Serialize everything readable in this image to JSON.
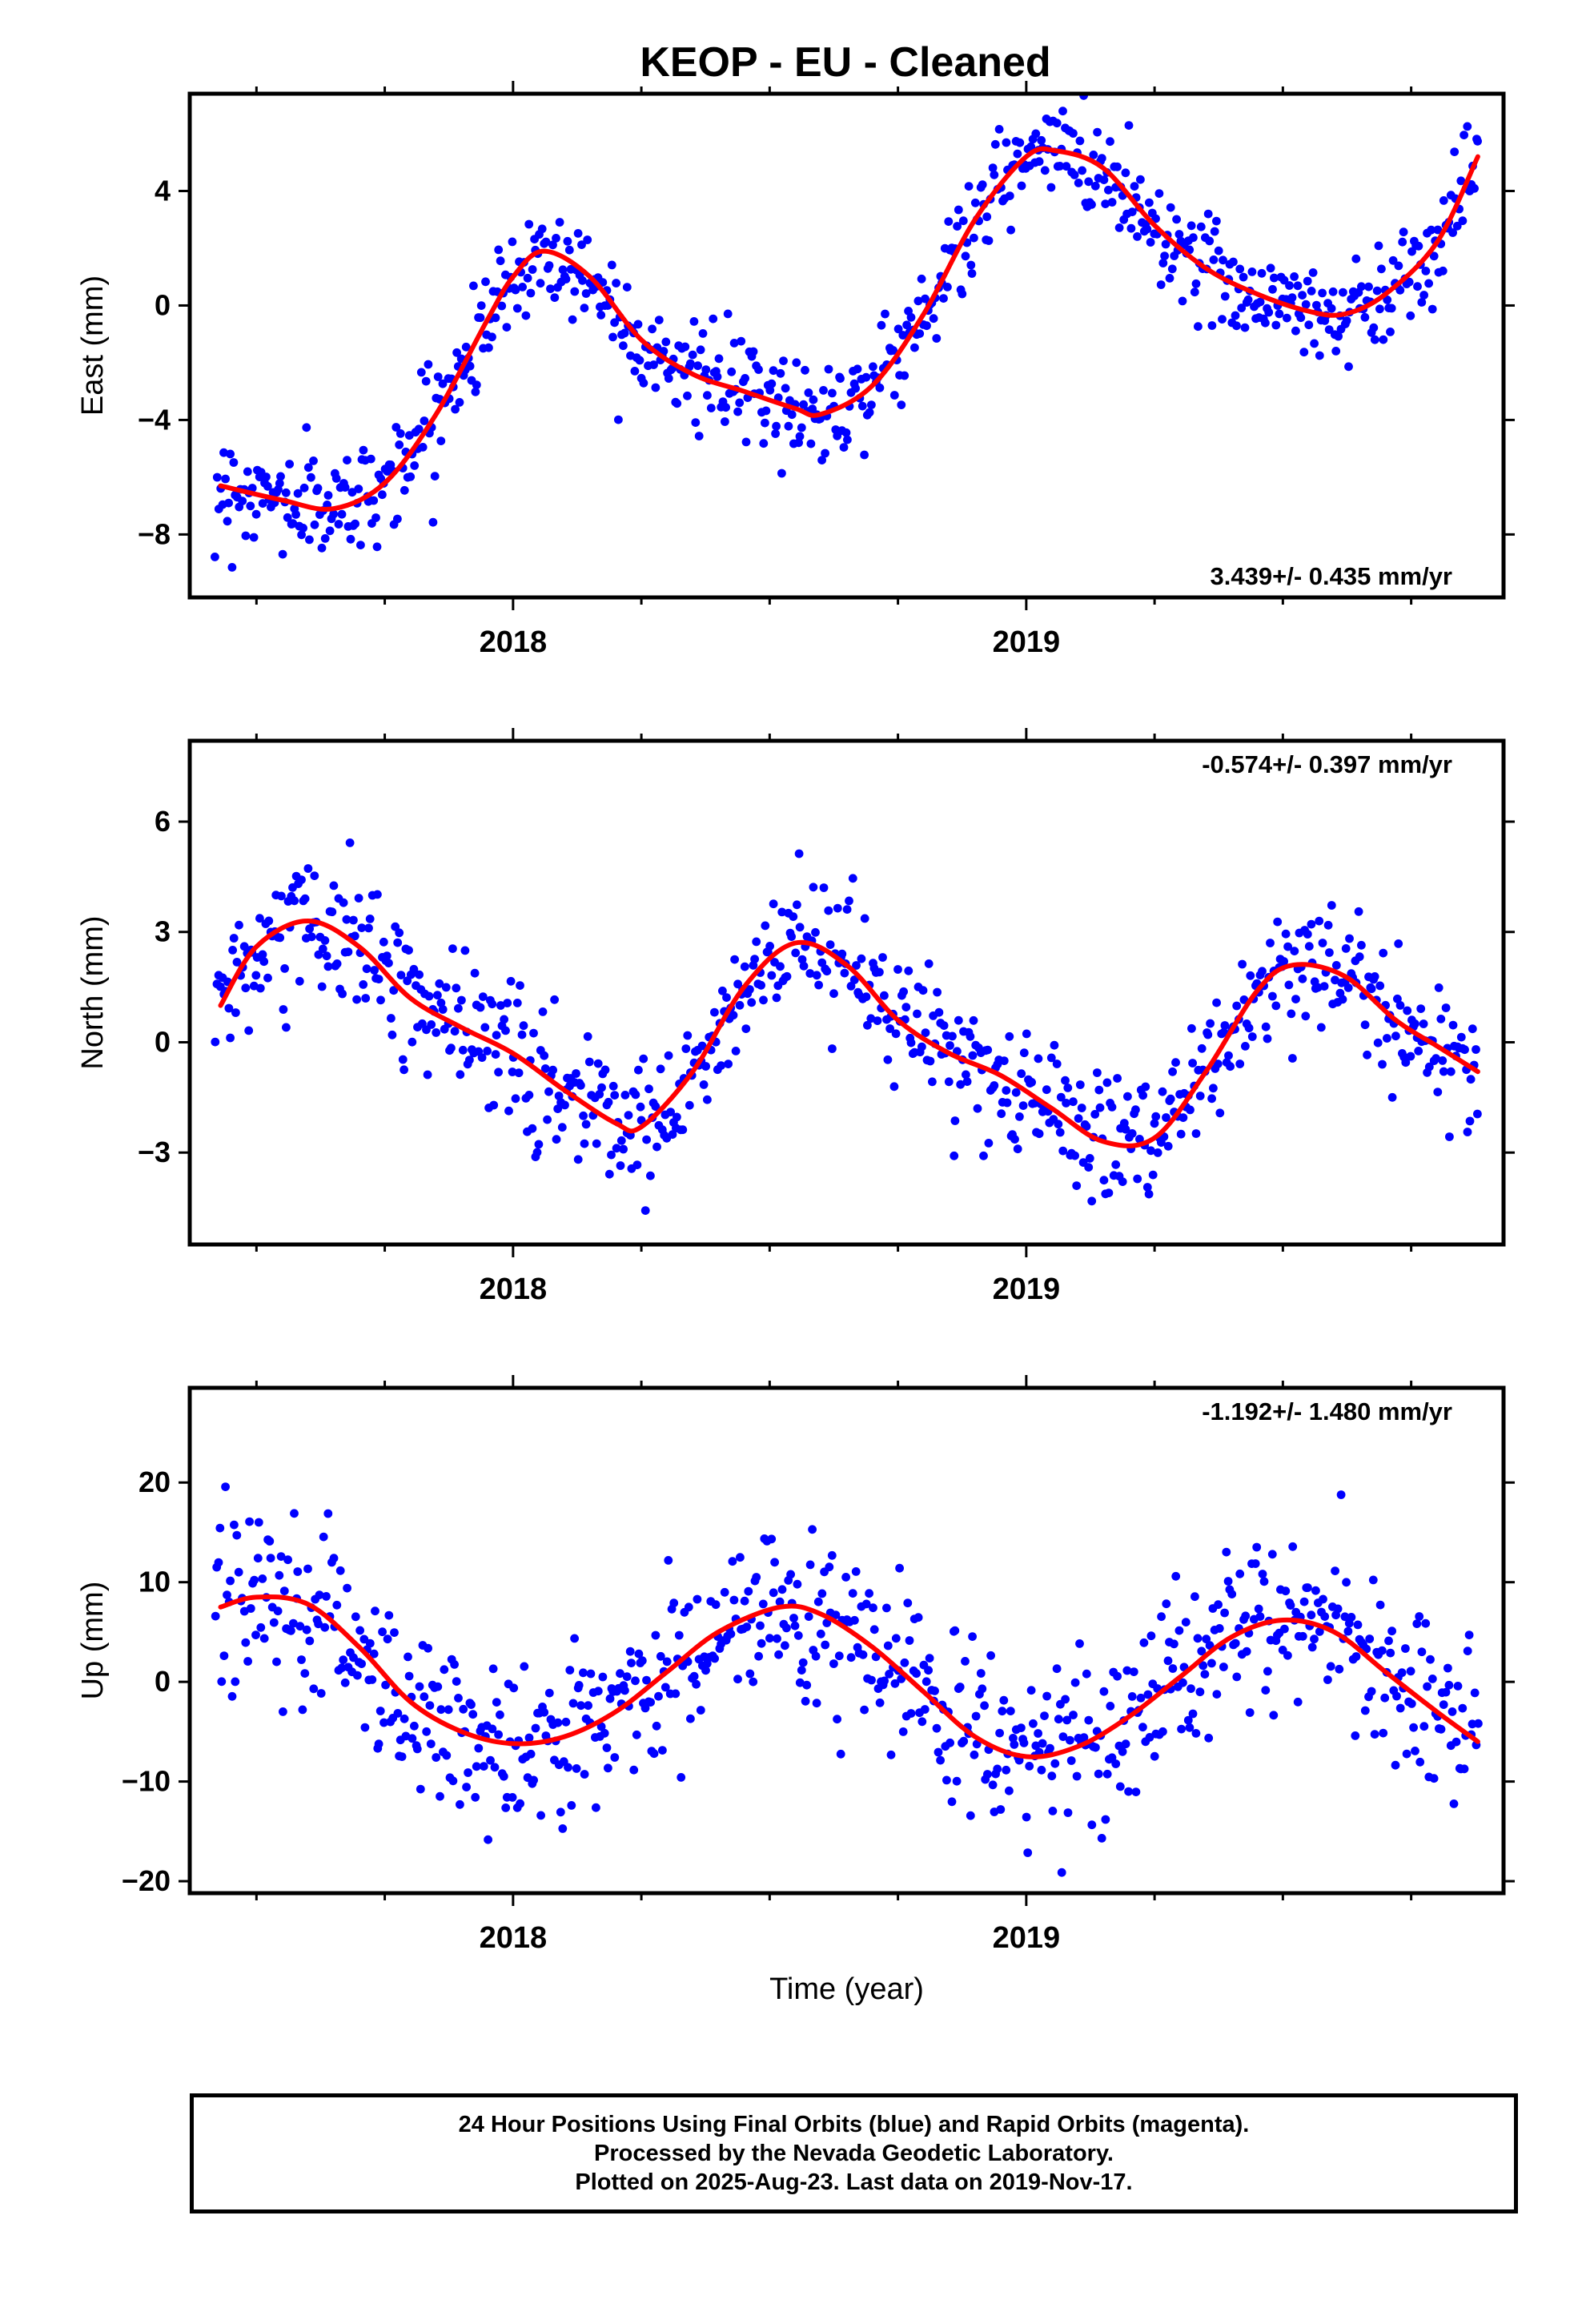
{
  "title": "KEOP  - EU - Cleaned",
  "footer": {
    "line1": "24 Hour Positions Using Final Orbits (blue) and Rapid Orbits (magenta).",
    "line2": "Processed by the Nevada Geodetic Laboratory.",
    "line3": "Plotted on 2025-Aug-23. Last data on 2019-Nov-17."
  },
  "colors": {
    "points": "#0000ff",
    "fit": "#ff0000",
    "frame": "#000000"
  },
  "chart_data": [
    {
      "type": "scatter",
      "component": "East",
      "ylabel": "East (mm)",
      "xlabel": "",
      "xlim": [
        2017.37,
        2019.93
      ],
      "ylim": [
        -10.2,
        7.4
      ],
      "yticks": [
        -8,
        -4,
        0,
        4
      ],
      "ytick_labels": [
        "−8",
        "−4",
        "0",
        "4"
      ],
      "xticks": [
        2018,
        2019
      ],
      "xtick_labels": [
        "2018",
        "2019"
      ],
      "rate_label": "3.439+/- 0.435 mm/yr",
      "rate_position": "bottom-right",
      "fit": {
        "x": [
          2017.43,
          2017.55,
          2017.65,
          2017.75,
          2017.85,
          2017.95,
          2018.0,
          2018.06,
          2018.15,
          2018.25,
          2018.35,
          2018.45,
          2018.55,
          2018.6,
          2018.7,
          2018.8,
          2018.9,
          2019.0,
          2019.06,
          2019.15,
          2019.25,
          2019.35,
          2019.45,
          2019.55,
          2019.62,
          2019.7,
          2019.8,
          2019.88
        ],
        "y": [
          -6.3,
          -6.8,
          -7.1,
          -6.2,
          -3.8,
          -0.5,
          1.0,
          1.9,
          1.0,
          -1.2,
          -2.4,
          -3.0,
          -3.6,
          -3.8,
          -2.8,
          -0.3,
          3.0,
          5.2,
          5.4,
          4.8,
          2.8,
          1.3,
          0.4,
          -0.2,
          -0.3,
          0.4,
          2.2,
          5.2
        ]
      },
      "points": {
        "x_range": [
          2017.42,
          2019.88
        ],
        "count": 750,
        "scatter_sd": 0.9
      }
    },
    {
      "type": "scatter",
      "component": "North",
      "ylabel": "North (mm)",
      "xlabel": "",
      "xlim": [
        2017.37,
        2019.93
      ],
      "ylim": [
        -5.5,
        8.2
      ],
      "yticks": [
        -3,
        0,
        3,
        6
      ],
      "ytick_labels": [
        "−3",
        "0",
        "3",
        "6"
      ],
      "xticks": [
        2018,
        2019
      ],
      "xtick_labels": [
        "2018",
        "2019"
      ],
      "rate_label": "-0.574+/- 0.397 mm/yr",
      "rate_position": "top-right",
      "fit": {
        "x": [
          2017.43,
          2017.5,
          2017.6,
          2017.7,
          2017.8,
          2017.9,
          2018.0,
          2018.1,
          2018.2,
          2018.25,
          2018.35,
          2018.45,
          2018.55,
          2018.65,
          2018.75,
          2018.85,
          2018.95,
          2019.05,
          2019.15,
          2019.25,
          2019.35,
          2019.45,
          2019.52,
          2019.62,
          2019.72,
          2019.8,
          2019.88
        ],
        "y": [
          1.0,
          2.6,
          3.3,
          2.6,
          1.2,
          0.4,
          -0.3,
          -1.3,
          -2.2,
          -2.3,
          -0.8,
          1.5,
          2.7,
          2.1,
          0.6,
          -0.3,
          -0.9,
          -1.8,
          -2.7,
          -2.6,
          -0.8,
          1.4,
          2.1,
          1.8,
          0.6,
          -0.1,
          -0.8
        ]
      },
      "points": {
        "x_range": [
          2017.42,
          2019.88
        ],
        "count": 750,
        "scatter_sd": 0.9
      }
    },
    {
      "type": "scatter",
      "component": "Up",
      "ylabel": "Up (mm)",
      "xlabel": "Time (year)",
      "xlim": [
        2017.37,
        2019.93
      ],
      "ylim": [
        -21.2,
        29.5
      ],
      "yticks": [
        -20,
        -10,
        0,
        10,
        20
      ],
      "ytick_labels": [
        "−20",
        "−10",
        "0",
        "10",
        "20"
      ],
      "xticks": [
        2018,
        2019
      ],
      "xtick_labels": [
        "2018",
        "2019"
      ],
      "rate_label": "-1.192+/- 1.480 mm/yr",
      "rate_position": "top-right",
      "fit": {
        "x": [
          2017.43,
          2017.5,
          2017.6,
          2017.7,
          2017.8,
          2017.9,
          2018.0,
          2018.1,
          2018.2,
          2018.3,
          2018.4,
          2018.52,
          2018.6,
          2018.7,
          2018.8,
          2018.9,
          2019.0,
          2019.1,
          2019.2,
          2019.3,
          2019.4,
          2019.5,
          2019.6,
          2019.7,
          2019.8,
          2019.88
        ],
        "y": [
          7.5,
          8.5,
          7.8,
          3.5,
          -2.0,
          -5.0,
          -6.2,
          -5.5,
          -3.0,
          1.0,
          5.0,
          7.5,
          6.8,
          3.5,
          -1.0,
          -5.5,
          -7.5,
          -6.5,
          -3.5,
          0.5,
          4.5,
          6.2,
          5.0,
          1.0,
          -3.0,
          -6.0
        ]
      },
      "points": {
        "x_range": [
          2017.42,
          2019.88
        ],
        "count": 750,
        "scatter_sd": 4.2
      }
    }
  ]
}
